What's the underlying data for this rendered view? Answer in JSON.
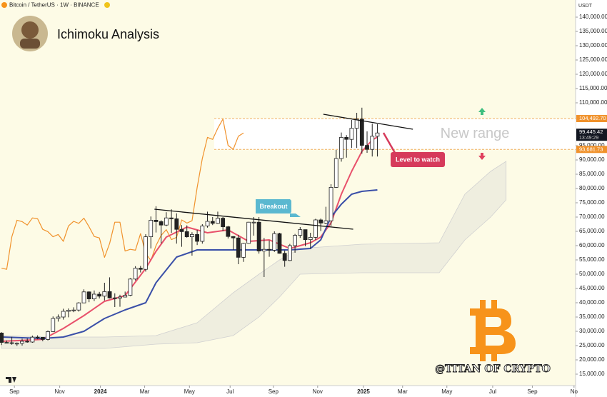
{
  "chart_data": {
    "type": "candlestick",
    "header": "Bitcoin / TetherUS · 1W · BINANCE",
    "title": "Ichimoku Analysis",
    "currency": "USDT",
    "watermark": "@TITAN OF CRYPTO",
    "ylim": [
      11000,
      146000
    ],
    "xlim": [
      -0.3,
      111.5
    ],
    "yticks": [
      {
        "value": 140000,
        "label": "140,000.00"
      },
      {
        "value": 135000,
        "label": "135,000.00"
      },
      {
        "value": 130000,
        "label": "130,000.00"
      },
      {
        "value": 125000,
        "label": "125,000.00"
      },
      {
        "value": 120000,
        "label": "120,000.00"
      },
      {
        "value": 115000,
        "label": "115,000.00"
      },
      {
        "value": 110000,
        "label": "110,000.00"
      },
      {
        "value": 95000,
        "label": "95,000.00"
      },
      {
        "value": 90000,
        "label": "90,000.00"
      },
      {
        "value": 85000,
        "label": "85,000.00"
      },
      {
        "value": 80000,
        "label": "80,000.00"
      },
      {
        "value": 75000,
        "label": "75,000.00"
      },
      {
        "value": 70000,
        "label": "70,000.00"
      },
      {
        "value": 65000,
        "label": "65,000.00"
      },
      {
        "value": 60000,
        "label": "60,000.00"
      },
      {
        "value": 55000,
        "label": "55,000.00"
      },
      {
        "value": 50000,
        "label": "50,000.00"
      },
      {
        "value": 45000,
        "label": "45,000.00"
      },
      {
        "value": 40000,
        "label": "40,000.00"
      },
      {
        "value": 35000,
        "label": "35,000.00"
      },
      {
        "value": 30000,
        "label": "30,000.00"
      },
      {
        "value": 25000,
        "label": "25,000.00"
      },
      {
        "value": 20000,
        "label": "20,000.00"
      },
      {
        "value": 15000,
        "label": "15,000.00"
      }
    ],
    "xticks": [
      {
        "value": 2.5,
        "label": "Sep"
      },
      {
        "value": 11.3,
        "label": "Nov"
      },
      {
        "value": 19.2,
        "label": "2024"
      },
      {
        "value": 27.8,
        "label": "Mar"
      },
      {
        "value": 36.5,
        "label": "May"
      },
      {
        "value": 44.4,
        "label": "Jul"
      },
      {
        "value": 52.8,
        "label": "Sep"
      },
      {
        "value": 61.4,
        "label": "Nov"
      },
      {
        "value": 70.3,
        "label": "2025"
      },
      {
        "value": 77.9,
        "label": "Mar"
      },
      {
        "value": 86.5,
        "label": "May"
      },
      {
        "value": 95.4,
        "label": "Jul"
      },
      {
        "value": 103.1,
        "label": "Sep"
      },
      {
        "value": 111.2,
        "label": "No"
      }
    ],
    "open": [
      29400,
      26100,
      26000,
      25800,
      25800,
      26500,
      26250,
      27950,
      27900,
      27150,
      29900,
      34500,
      35000,
      37000,
      37400,
      37450,
      39950,
      43800,
      41350,
      43000,
      42300,
      43900,
      41700,
      41600,
      42000,
      42600,
      48300,
      52100,
      51700,
      63100,
      68900,
      68400,
      67200,
      69700,
      69400,
      65700,
      64900,
      63100,
      63900,
      61500,
      66900,
      68500,
      67800,
      69600,
      66600,
      63200,
      62700,
      55900,
      60800,
      68200,
      68200,
      58100,
      58700,
      58400,
      64200,
      57300,
      54800,
      60000,
      63600,
      65600,
      62100,
      62900,
      69000,
      67900,
      68700,
      80400,
      90500,
      97900,
      97200,
      101100,
      104300,
      95100,
      93700,
      98300
    ],
    "high": [
      29700,
      26800,
      28100,
      26100,
      27400,
      27500,
      28500,
      28600,
      28000,
      30300,
      35200,
      35900,
      37900,
      38000,
      38400,
      40200,
      44700,
      44000,
      44300,
      43800,
      47000,
      48900,
      43300,
      42800,
      43900,
      48600,
      52800,
      52900,
      64000,
      70200,
      73800,
      68900,
      71700,
      72700,
      71300,
      67200,
      67100,
      64700,
      65500,
      67500,
      71900,
      70000,
      71900,
      70000,
      66900,
      63300,
      63800,
      61000,
      68300,
      70000,
      70000,
      62700,
      61800,
      65000,
      64500,
      58300,
      60600,
      64100,
      66500,
      65600,
      64500,
      69400,
      69500,
      73600,
      81500,
      93500,
      99600,
      98700,
      104000,
      106500,
      108300,
      100000,
      102700,
      102500
    ],
    "low": [
      25200,
      25800,
      25300,
      24900,
      25000,
      26000,
      26000,
      27200,
      26500,
      26800,
      29700,
      33400,
      34100,
      34900,
      36700,
      36900,
      39900,
      40200,
      40600,
      41500,
      40800,
      41500,
      38500,
      38600,
      41900,
      42300,
      47800,
      50600,
      50900,
      59000,
      64600,
      60800,
      66800,
      64500,
      60700,
      59600,
      62800,
      56500,
      60200,
      60700,
      66300,
      67200,
      67600,
      65100,
      62500,
      58500,
      53500,
      54300,
      60700,
      63500,
      57200,
      49000,
      56100,
      57800,
      57200,
      52600,
      54600,
      57500,
      62700,
      59800,
      58900,
      62000,
      65100,
      67500,
      66800,
      80200,
      89400,
      90800,
      94200,
      94200,
      92200,
      92500,
      91200,
      91200
    ],
    "close": [
      26100,
      26000,
      25800,
      25800,
      26500,
      26250,
      27950,
      27900,
      27150,
      29900,
      34500,
      35000,
      37000,
      37400,
      37450,
      39950,
      43800,
      41350,
      43000,
      42300,
      43900,
      41700,
      41600,
      42000,
      42600,
      48300,
      52100,
      51700,
      63100,
      68900,
      68400,
      67200,
      69700,
      69400,
      65700,
      64900,
      63100,
      63900,
      61500,
      66900,
      68500,
      67800,
      69600,
      66600,
      63200,
      62700,
      55900,
      60800,
      68200,
      68200,
      58100,
      58700,
      58400,
      64200,
      57300,
      54800,
      60000,
      63600,
      65600,
      62100,
      62900,
      69000,
      67900,
      68700,
      80400,
      90500,
      97900,
      97200,
      101100,
      104300,
      95100,
      93700,
      98300,
      99445.42
    ],
    "lines": [
      {
        "color": "#f0922c",
        "x": [
          0,
          1,
          2,
          3,
          4,
          5,
          6,
          7,
          8,
          9,
          10,
          11,
          12,
          13,
          14,
          15,
          16,
          17,
          18,
          19,
          20,
          21,
          22,
          23,
          24,
          25,
          26,
          27,
          28,
          29,
          30,
          31,
          32,
          33,
          34,
          35,
          36,
          37,
          38,
          39,
          40,
          41,
          42,
          43,
          44,
          45,
          46,
          47
        ],
        "values": [
          52100,
          51700,
          63100,
          68900,
          68400,
          67200,
          69700,
          69400,
          65700,
          64900,
          63100,
          63900,
          61500,
          66900,
          68500,
          67800,
          69600,
          66600,
          63200,
          62700,
          55900,
          60800,
          68200,
          68200,
          58100,
          58700,
          58400,
          64200,
          57300,
          54800,
          60000,
          63600,
          65600,
          62100,
          62900,
          69000,
          67900,
          68700,
          80400,
          90500,
          97900,
          97200,
          101100,
          104300,
          95100,
          93700,
          98300,
          99445.42
        ]
      },
      {
        "color": "#e8516b",
        "x": [
          0,
          4,
          8,
          12,
          16,
          20,
          24,
          28,
          30,
          32,
          36,
          40,
          44,
          48,
          52,
          56,
          60,
          62,
          64,
          66,
          68,
          70,
          72,
          73
        ],
        "values": [
          26500,
          26800,
          27200,
          31000,
          35500,
          40500,
          42500,
          52000,
          58000,
          63000,
          66500,
          64500,
          65500,
          61500,
          62000,
          59000,
          61000,
          63000,
          68000,
          78000,
          86000,
          93000,
          97000,
          98000
        ]
      },
      {
        "color": "#3a4fa8",
        "x": [
          0,
          8,
          12,
          16,
          20,
          24,
          28,
          30,
          34,
          38,
          44,
          50,
          56,
          60,
          62,
          64,
          66,
          68,
          70,
          73
        ],
        "values": [
          28000,
          27500,
          28000,
          30000,
          34500,
          37500,
          40000,
          47000,
          56000,
          58500,
          58500,
          58500,
          58500,
          59000,
          62000,
          70000,
          74500,
          78000,
          79000,
          79500
        ]
      }
    ],
    "cloud": {
      "color": "#d0d0d0",
      "x": [
        0,
        10,
        20,
        30,
        38,
        45,
        50,
        54,
        58,
        70,
        85,
        90,
        95,
        98
      ],
      "upper": [
        28500,
        28000,
        28000,
        28500,
        33000,
        43500,
        50000,
        55000,
        59000,
        60500,
        61000,
        78000,
        86000,
        89500
      ],
      "lower": [
        24000,
        24000,
        24000,
        25500,
        26000,
        28500,
        35000,
        42000,
        50000,
        50500,
        50500,
        62000,
        70000,
        76000
      ]
    },
    "trendlines": [
      {
        "x": [
          29.7,
          68.3
        ],
        "values": [
          72750,
          65750
        ]
      },
      {
        "x": [
          62.5,
          79.9
        ],
        "values": [
          106000,
          100750
        ]
      }
    ],
    "range": {
      "text": "New range",
      "upper": {
        "value": 104492.7,
        "label": "104,492.70"
      },
      "lower": {
        "value": 93681.73,
        "label": "93,681.73"
      }
    },
    "last_price": {
      "value": 99445.42,
      "label": "99,445.42",
      "time": "13:49:29"
    },
    "annotations": {
      "breakout": "Breakout",
      "level": "Level to watch"
    }
  }
}
